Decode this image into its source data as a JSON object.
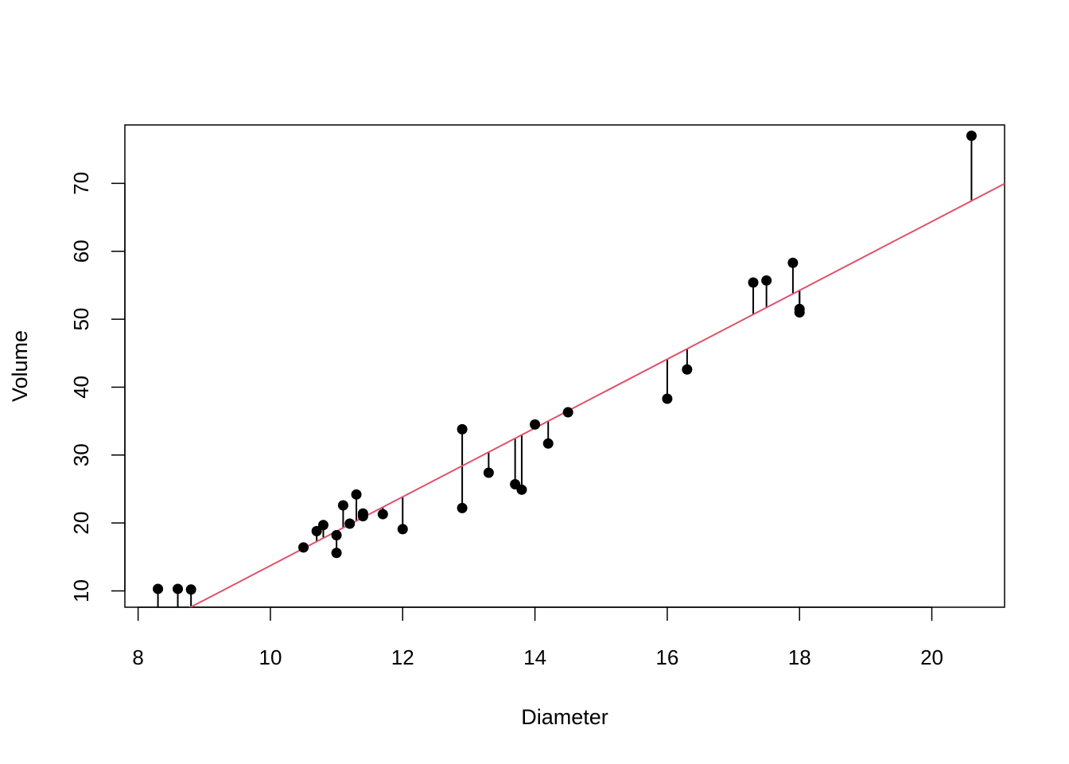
{
  "chart_data": {
    "type": "scatter",
    "title": "",
    "xlabel": "Diameter",
    "ylabel": "Volume",
    "xlim": [
      7.8,
      21.1
    ],
    "ylim": [
      7.6,
      78.6
    ],
    "x_ticks": [
      "8",
      "10",
      "12",
      "14",
      "16",
      "18",
      "20"
    ],
    "y_ticks": [
      "10",
      "20",
      "30",
      "40",
      "50",
      "60",
      "70"
    ],
    "grid": false,
    "legend": "none",
    "colors": {
      "points": "#000000",
      "fit_line": "#DF536B",
      "frame": "#000000"
    },
    "points": [
      {
        "x": 8.3,
        "y": 10.3
      },
      {
        "x": 8.6,
        "y": 10.3
      },
      {
        "x": 8.8,
        "y": 10.2
      },
      {
        "x": 10.5,
        "y": 16.4
      },
      {
        "x": 10.7,
        "y": 18.8
      },
      {
        "x": 10.8,
        "y": 19.7
      },
      {
        "x": 11.0,
        "y": 15.6
      },
      {
        "x": 11.0,
        "y": 18.2
      },
      {
        "x": 11.1,
        "y": 22.6
      },
      {
        "x": 11.2,
        "y": 19.9
      },
      {
        "x": 11.3,
        "y": 24.2
      },
      {
        "x": 11.4,
        "y": 21.0
      },
      {
        "x": 11.4,
        "y": 21.4
      },
      {
        "x": 11.7,
        "y": 21.3
      },
      {
        "x": 12.0,
        "y": 19.1
      },
      {
        "x": 12.9,
        "y": 22.2
      },
      {
        "x": 12.9,
        "y": 33.8
      },
      {
        "x": 13.3,
        "y": 27.4
      },
      {
        "x": 13.7,
        "y": 25.7
      },
      {
        "x": 13.8,
        "y": 24.9
      },
      {
        "x": 14.0,
        "y": 34.5
      },
      {
        "x": 14.2,
        "y": 31.7
      },
      {
        "x": 14.5,
        "y": 36.3
      },
      {
        "x": 16.0,
        "y": 38.3
      },
      {
        "x": 16.3,
        "y": 42.6
      },
      {
        "x": 17.3,
        "y": 55.4
      },
      {
        "x": 17.5,
        "y": 55.7
      },
      {
        "x": 17.9,
        "y": 58.3
      },
      {
        "x": 18.0,
        "y": 51.5
      },
      {
        "x": 18.0,
        "y": 51.0
      },
      {
        "x": 20.6,
        "y": 77.0
      }
    ],
    "fit_line": {
      "intercept": -36.94,
      "slope": 5.066
    }
  }
}
